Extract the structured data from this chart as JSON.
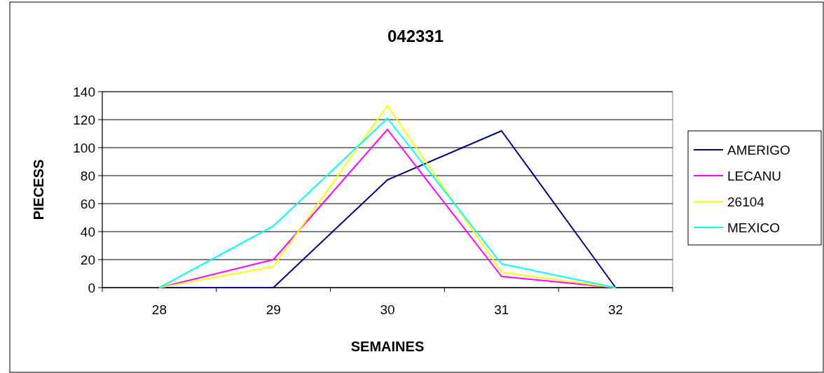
{
  "chart_data": {
    "type": "line",
    "title": "042331",
    "xlabel": "SEMAINES",
    "ylabel": "PIECESS",
    "categories": [
      "28",
      "29",
      "30",
      "31",
      "32"
    ],
    "series": [
      {
        "name": "AMERIGO",
        "color": "#000080",
        "values": [
          0,
          0,
          77,
          112,
          0
        ]
      },
      {
        "name": "LECANU",
        "color": "#ff00ff",
        "values": [
          0,
          20,
          113,
          8,
          0
        ]
      },
      {
        "name": "26104",
        "color": "#ffff00",
        "values": [
          0,
          15,
          130,
          11,
          0
        ]
      },
      {
        "name": "MEXICO",
        "color": "#00ffff",
        "values": [
          0,
          44,
          121,
          17,
          0
        ]
      }
    ],
    "ylim": [
      0,
      140
    ],
    "yticks": [
      0,
      20,
      40,
      60,
      80,
      100,
      120,
      140
    ],
    "grid": "y",
    "legend": "right",
    "marker": "none",
    "line_style": "solid"
  }
}
